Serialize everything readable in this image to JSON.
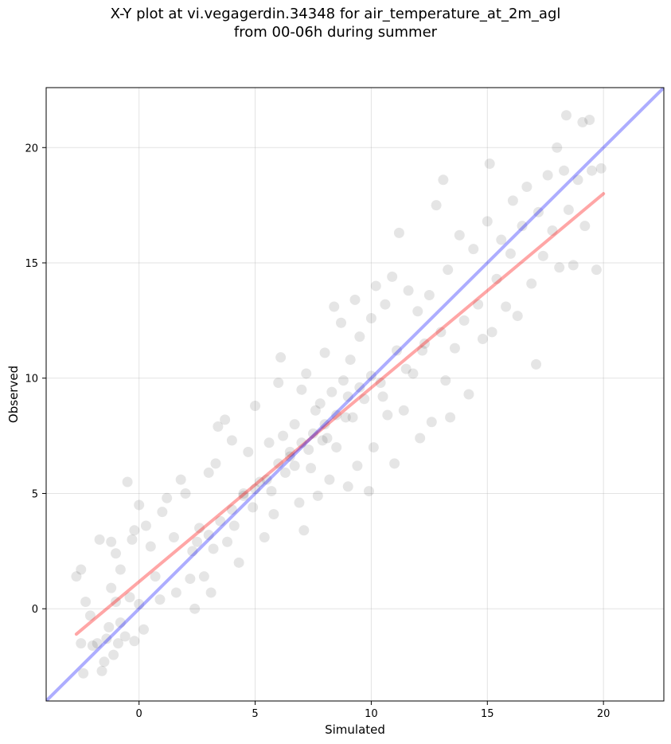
{
  "title_line1": "X-Y plot at vi.vegagerdin.34348 for air_temperature_at_2m_agl",
  "title_line2": "from 00-06h during summer",
  "chart_data": {
    "type": "scatter",
    "title": "X-Y plot at vi.vegagerdin.34348 for air_temperature_at_2m_agl from 00-06h during summer",
    "xlabel": "Simulated",
    "ylabel": "Observed",
    "xlim": [
      -4,
      22.6
    ],
    "ylim": [
      -4,
      22.6
    ],
    "xticks": [
      0,
      5,
      10,
      15,
      20
    ],
    "yticks": [
      0,
      5,
      10,
      15,
      20
    ],
    "grid": true,
    "point_color": "#000000",
    "point_alpha": 0.1,
    "series": [
      {
        "role": "observations",
        "points": [
          [
            -2.7,
            1.4
          ],
          [
            -2.5,
            1.7
          ],
          [
            -2.3,
            0.3
          ],
          [
            -2.1,
            -0.3
          ],
          [
            -2.5,
            -1.5
          ],
          [
            -2.4,
            -2.8
          ],
          [
            -2.0,
            -1.6
          ],
          [
            -1.8,
            -1.5
          ],
          [
            -1.6,
            -2.7
          ],
          [
            -1.5,
            -2.3
          ],
          [
            -1.4,
            -1.3
          ],
          [
            -1.3,
            -0.8
          ],
          [
            -1.7,
            3.0
          ],
          [
            -1.2,
            2.9
          ],
          [
            -1.0,
            2.4
          ],
          [
            -0.8,
            1.7
          ],
          [
            -0.5,
            5.5
          ],
          [
            -0.3,
            3.0
          ],
          [
            -0.2,
            3.4
          ],
          [
            0.0,
            4.5
          ],
          [
            -1.2,
            0.9
          ],
          [
            -1.0,
            0.3
          ],
          [
            -0.8,
            -0.6
          ],
          [
            -0.6,
            -1.2
          ],
          [
            -0.4,
            0.5
          ],
          [
            -0.2,
            -1.4
          ],
          [
            0.0,
            0.2
          ],
          [
            0.2,
            -0.9
          ],
          [
            -0.9,
            -1.5
          ],
          [
            -1.1,
            -2.0
          ],
          [
            0.3,
            3.6
          ],
          [
            0.5,
            2.7
          ],
          [
            0.7,
            1.4
          ],
          [
            0.9,
            0.4
          ],
          [
            1.0,
            4.2
          ],
          [
            1.2,
            4.8
          ],
          [
            1.5,
            3.1
          ],
          [
            1.8,
            5.6
          ],
          [
            2.0,
            5.0
          ],
          [
            1.6,
            0.7
          ],
          [
            2.2,
            1.3
          ],
          [
            2.3,
            2.5
          ],
          [
            2.4,
            0.0
          ],
          [
            2.6,
            3.5
          ],
          [
            2.8,
            1.4
          ],
          [
            3.0,
            5.9
          ],
          [
            3.1,
            0.7
          ],
          [
            3.2,
            2.6
          ],
          [
            3.3,
            6.3
          ],
          [
            3.4,
            7.9
          ],
          [
            3.7,
            8.2
          ],
          [
            3.8,
            2.9
          ],
          [
            4.0,
            7.3
          ],
          [
            4.1,
            3.6
          ],
          [
            4.3,
            2.0
          ],
          [
            4.5,
            5.0
          ],
          [
            4.7,
            6.8
          ],
          [
            4.9,
            4.4
          ],
          [
            5.0,
            8.8
          ],
          [
            5.2,
            5.5
          ],
          [
            5.4,
            3.1
          ],
          [
            5.6,
            7.2
          ],
          [
            5.8,
            4.1
          ],
          [
            6.0,
            9.8
          ],
          [
            6.1,
            10.9
          ],
          [
            6.3,
            5.9
          ],
          [
            6.5,
            6.6
          ],
          [
            6.7,
            8.0
          ],
          [
            6.9,
            4.6
          ],
          [
            7.0,
            9.5
          ],
          [
            7.1,
            3.4
          ],
          [
            7.2,
            10.2
          ],
          [
            7.4,
            6.1
          ],
          [
            7.6,
            8.6
          ],
          [
            7.7,
            4.9
          ],
          [
            7.9,
            7.3
          ],
          [
            8.0,
            11.1
          ],
          [
            8.2,
            5.6
          ],
          [
            8.3,
            9.4
          ],
          [
            8.4,
            13.1
          ],
          [
            8.5,
            7.0
          ],
          [
            8.7,
            12.4
          ],
          [
            8.9,
            8.3
          ],
          [
            9.0,
            5.3
          ],
          [
            9.1,
            10.8
          ],
          [
            9.3,
            13.4
          ],
          [
            9.4,
            6.2
          ],
          [
            9.5,
            11.8
          ],
          [
            9.7,
            9.1
          ],
          [
            9.9,
            5.1
          ],
          [
            10.0,
            12.6
          ],
          [
            10.1,
            7.0
          ],
          [
            10.2,
            14.0
          ],
          [
            10.4,
            9.8
          ],
          [
            10.6,
            13.2
          ],
          [
            10.7,
            8.4
          ],
          [
            10.9,
            14.4
          ],
          [
            11.0,
            6.3
          ],
          [
            11.1,
            11.2
          ],
          [
            11.2,
            16.3
          ],
          [
            11.4,
            8.6
          ],
          [
            11.6,
            13.8
          ],
          [
            11.8,
            10.2
          ],
          [
            12.0,
            12.9
          ],
          [
            12.1,
            7.4
          ],
          [
            12.3,
            11.5
          ],
          [
            12.5,
            13.6
          ],
          [
            12.6,
            8.1
          ],
          [
            12.8,
            17.5
          ],
          [
            13.0,
            12.0
          ],
          [
            13.1,
            18.6
          ],
          [
            13.2,
            9.9
          ],
          [
            13.3,
            14.7
          ],
          [
            13.4,
            8.3
          ],
          [
            13.6,
            11.3
          ],
          [
            13.8,
            16.2
          ],
          [
            14.0,
            12.5
          ],
          [
            14.2,
            9.3
          ],
          [
            14.4,
            15.6
          ],
          [
            14.6,
            13.2
          ],
          [
            14.8,
            11.7
          ],
          [
            15.0,
            16.8
          ],
          [
            15.1,
            19.3
          ],
          [
            15.2,
            12.0
          ],
          [
            15.4,
            14.3
          ],
          [
            15.6,
            16.0
          ],
          [
            15.8,
            13.1
          ],
          [
            16.0,
            15.4
          ],
          [
            16.1,
            17.7
          ],
          [
            16.3,
            12.7
          ],
          [
            16.5,
            16.6
          ],
          [
            16.7,
            18.3
          ],
          [
            16.9,
            14.1
          ],
          [
            17.1,
            10.6
          ],
          [
            17.2,
            17.2
          ],
          [
            17.4,
            15.3
          ],
          [
            17.6,
            18.8
          ],
          [
            17.8,
            16.4
          ],
          [
            18.0,
            20.0
          ],
          [
            18.1,
            14.8
          ],
          [
            18.3,
            19.0
          ],
          [
            18.4,
            21.4
          ],
          [
            18.5,
            17.3
          ],
          [
            18.7,
            14.9
          ],
          [
            18.9,
            18.6
          ],
          [
            19.1,
            21.1
          ],
          [
            19.2,
            16.6
          ],
          [
            19.4,
            21.2
          ],
          [
            19.5,
            19.0
          ],
          [
            19.7,
            14.7
          ],
          [
            19.9,
            19.1
          ],
          [
            4.0,
            4.3
          ],
          [
            4.5,
            4.9
          ],
          [
            5.0,
            5.2
          ],
          [
            5.5,
            5.6
          ],
          [
            6.0,
            6.3
          ],
          [
            6.5,
            6.8
          ],
          [
            7.0,
            7.2
          ],
          [
            7.5,
            7.6
          ],
          [
            8.0,
            8.0
          ],
          [
            8.5,
            8.4
          ],
          [
            9.0,
            9.2
          ],
          [
            9.5,
            9.6
          ],
          [
            10.0,
            10.1
          ],
          [
            3.5,
            3.8
          ],
          [
            3.0,
            3.2
          ],
          [
            2.5,
            2.9
          ],
          [
            6.2,
            7.5
          ],
          [
            7.8,
            8.9
          ],
          [
            8.8,
            9.9
          ],
          [
            5.7,
            5.1
          ],
          [
            6.7,
            6.2
          ],
          [
            7.3,
            6.9
          ],
          [
            8.1,
            7.4
          ],
          [
            9.2,
            8.3
          ],
          [
            10.5,
            9.2
          ],
          [
            11.5,
            10.4
          ],
          [
            12.2,
            11.2
          ]
        ]
      },
      {
        "role": "regression-fit",
        "color": "#ff0000",
        "alpha": 0.35,
        "x": [
          -2.7,
          20.0
        ],
        "y": [
          -1.1,
          18.0
        ]
      },
      {
        "role": "one-to-one",
        "color": "#0000ff",
        "alpha": 0.32,
        "x": [
          -4,
          22.6
        ],
        "y": [
          -4,
          22.6
        ]
      }
    ]
  }
}
